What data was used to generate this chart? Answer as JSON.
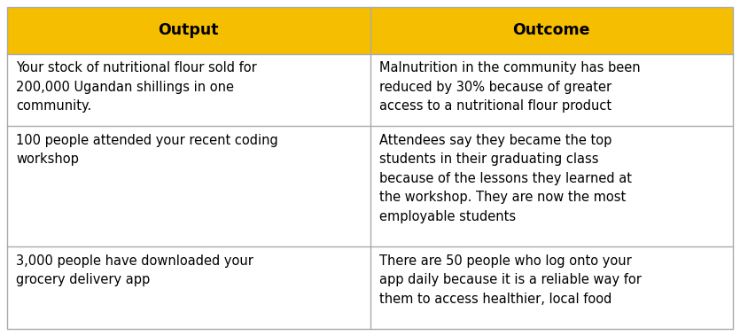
{
  "header_bg_color": "#F5BE00",
  "header_text_color": "#000000",
  "cell_bg_color": "#FFFFFF",
  "border_color": "#AAAAAA",
  "text_color": "#000000",
  "headers": [
    "Output",
    "Outcome"
  ],
  "rows": [
    [
      "Your stock of nutritional flour sold for\n200,000 Ugandan shillings in one\ncommunity.",
      "Malnutrition in the community has been\nreduced by 30% because of greater\naccess to a nutritional flour product"
    ],
    [
      "100 people attended your recent coding\nworkshop",
      "Attendees say they became the top\nstudents in their graduating class\nbecause of the lessons they learned at\nthe workshop. They are now the most\nemployable students"
    ],
    [
      "3,000 people have downloaded your\ngrocery delivery app",
      "There are 50 people who log onto your\napp daily because it is a reliable way for\nthem to access healthier, local food"
    ]
  ],
  "header_fontsize": 12.5,
  "cell_fontsize": 10.5,
  "figsize": [
    8.35,
    3.79
  ],
  "dpi": 100
}
